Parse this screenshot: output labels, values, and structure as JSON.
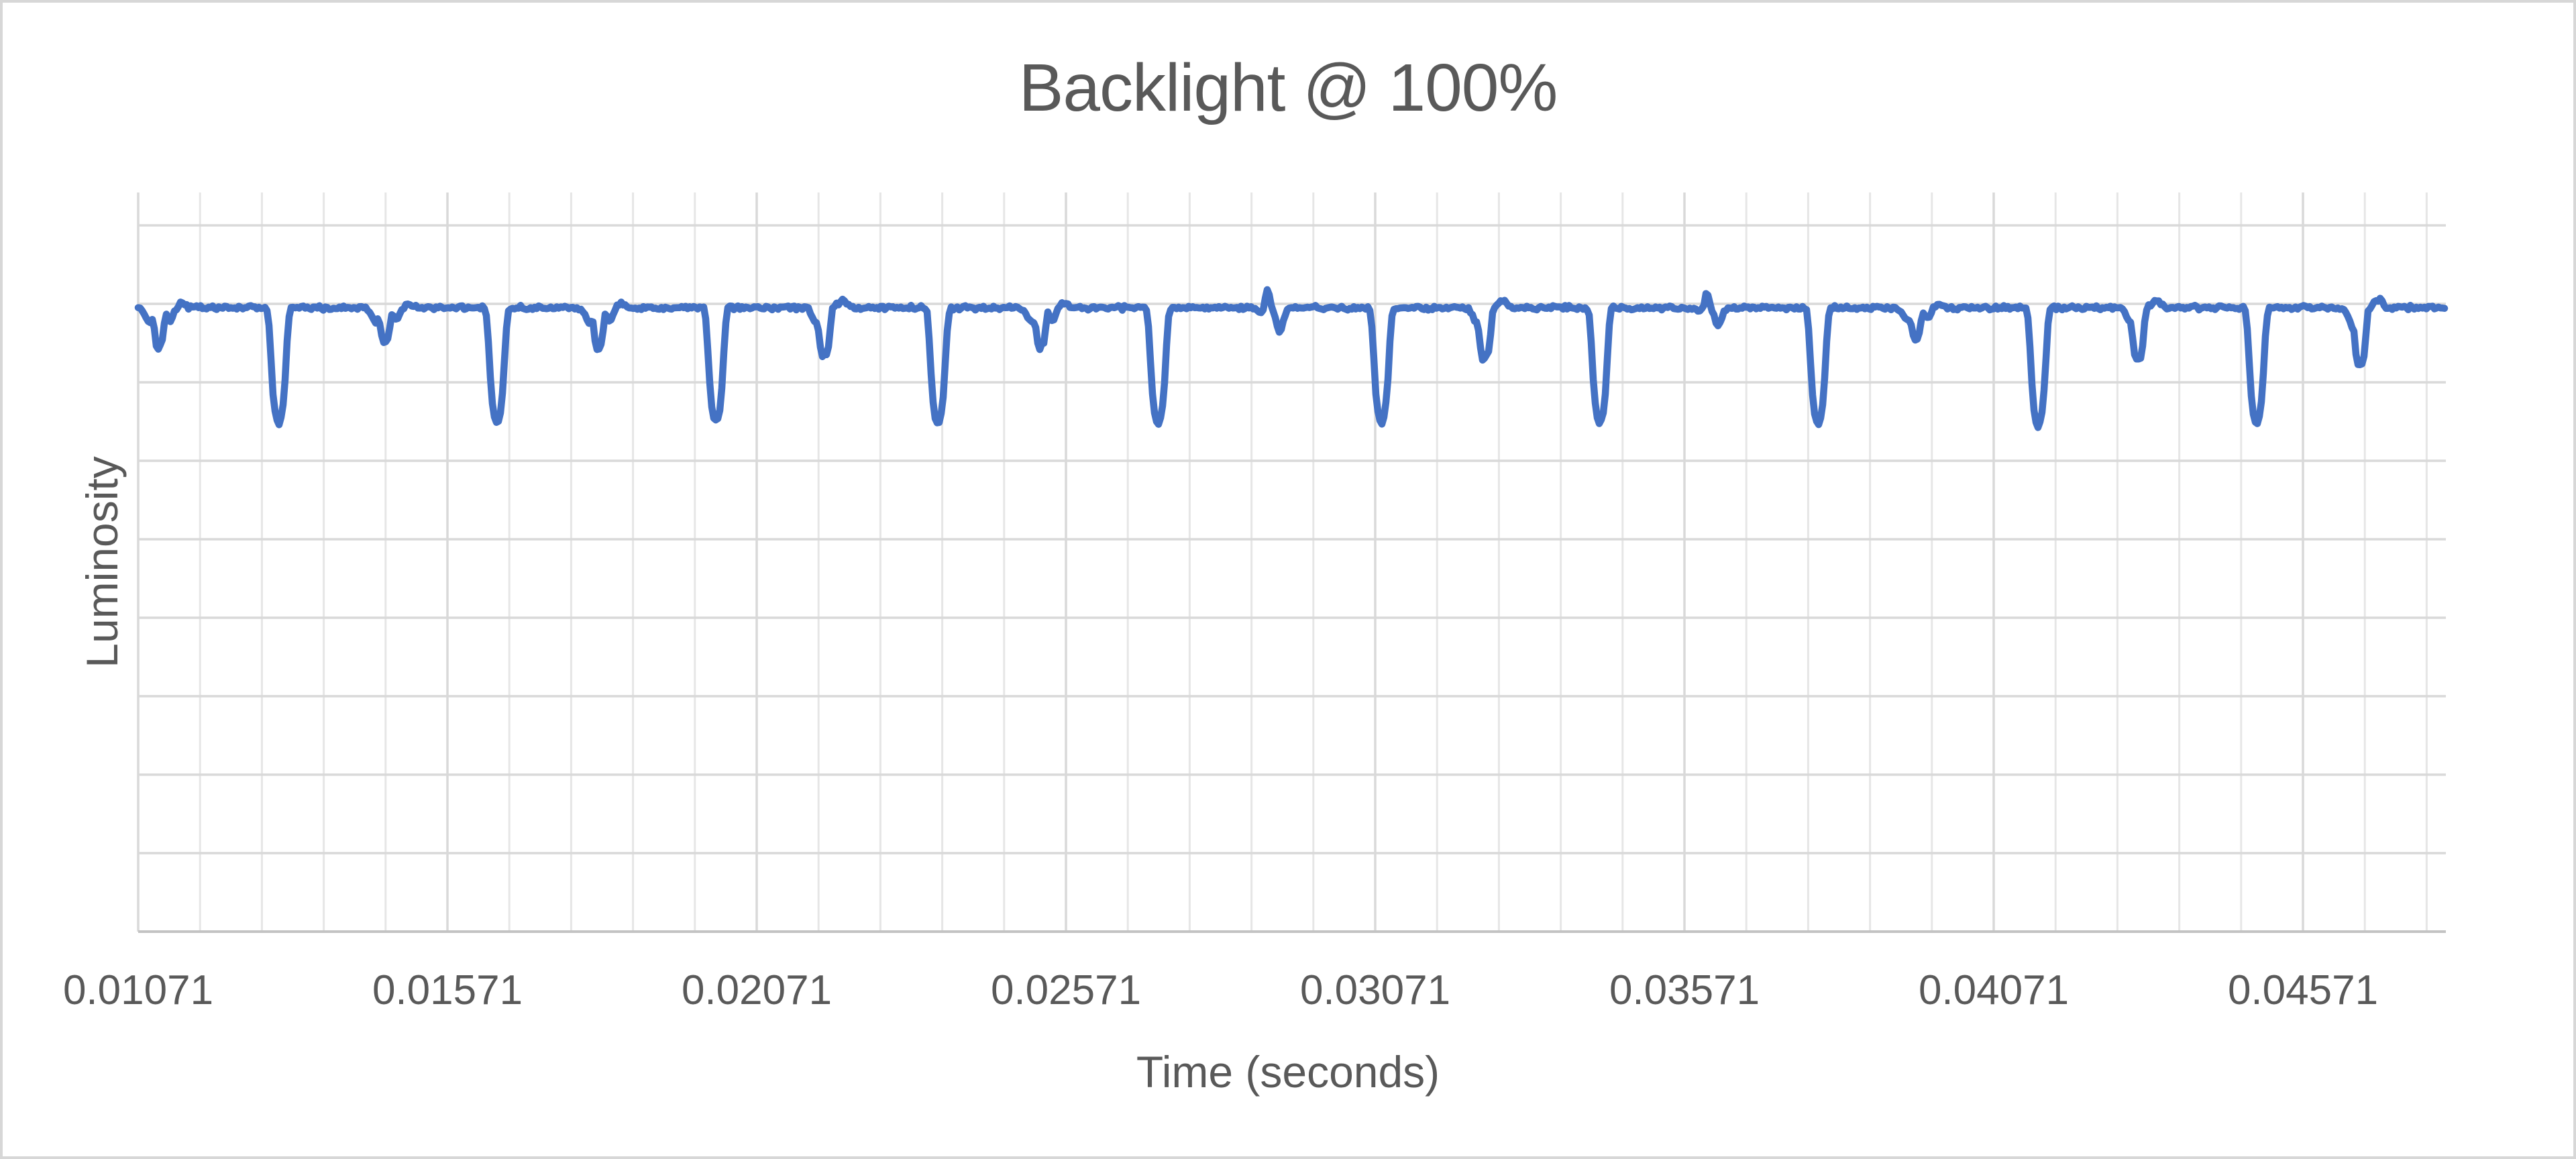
{
  "window": {
    "background": "#FFFFFF",
    "border_color": "#D7D7D7"
  },
  "chart_data": {
    "type": "line",
    "title": "Backlight @ 100%",
    "xlabel": "Time (seconds)",
    "ylabel": "Luminosity",
    "x_tick_labels": [
      "0.01071",
      "0.01571",
      "0.02071",
      "0.02571",
      "0.03071",
      "0.03571",
      "0.04071",
      "0.04571"
    ],
    "x_min": 0.01071,
    "x_max": 0.04802,
    "x_major_interval": 0.005,
    "x_minor_per_major": 5,
    "y_gridline_count": 10,
    "y_tick_labels_visible": false,
    "grid": true,
    "legend": false,
    "colors": {
      "series": "#4472C4",
      "title_text": "#595959",
      "axis_text": "#595959",
      "gridline_minor": "#E6E6E6",
      "gridline_major": "#D9D9D9",
      "axis_line": "#C3C3C3"
    },
    "series": [
      {
        "name": "Luminosity",
        "color": "#4472C4",
        "baseline_frac": 0.156,
        "noise_frac": 0.0035,
        "description": "Flat luminosity trace with periodic PWM dips: alternating shallow and deep downward spikes, plus two small upward spikes",
        "events": [
          {
            "t": 0.01105,
            "shape": "small",
            "depth_frac": 0.05
          },
          {
            "t": 0.01298,
            "shape": "deep",
            "depth_frac": 0.15
          },
          {
            "t": 0.01471,
            "shape": "small",
            "depth_frac": 0.044
          },
          {
            "t": 0.01651,
            "shape": "deep",
            "depth_frac": 0.15
          },
          {
            "t": 0.01816,
            "shape": "small",
            "depth_frac": 0.052
          },
          {
            "t": 0.02005,
            "shape": "deep",
            "depth_frac": 0.148
          },
          {
            "t": 0.02181,
            "shape": "medium",
            "depth_frac": 0.062
          },
          {
            "t": 0.02364,
            "shape": "deep",
            "depth_frac": 0.15
          },
          {
            "t": 0.02531,
            "shape": "small",
            "depth_frac": 0.05
          },
          {
            "t": 0.0272,
            "shape": "deep",
            "depth_frac": 0.152
          },
          {
            "t": 0.02897,
            "shape": "spike",
            "height_frac": 0.028
          },
          {
            "t": 0.03081,
            "shape": "deep",
            "depth_frac": 0.15
          },
          {
            "t": 0.03249,
            "shape": "medium",
            "depth_frac": 0.066
          },
          {
            "t": 0.03434,
            "shape": "deep",
            "depth_frac": 0.15
          },
          {
            "t": 0.03607,
            "shape": "spike",
            "height_frac": 0.02
          },
          {
            "t": 0.03787,
            "shape": "deep",
            "depth_frac": 0.152
          },
          {
            "t": 0.03946,
            "shape": "small",
            "depth_frac": 0.04
          },
          {
            "t": 0.04143,
            "shape": "deep",
            "depth_frac": 0.154
          },
          {
            "t": 0.04305,
            "shape": "medium",
            "depth_frac": 0.068
          },
          {
            "t": 0.04496,
            "shape": "deep",
            "depth_frac": 0.15
          },
          {
            "t": 0.04664,
            "shape": "medium",
            "depth_frac": 0.075
          }
        ]
      }
    ]
  }
}
